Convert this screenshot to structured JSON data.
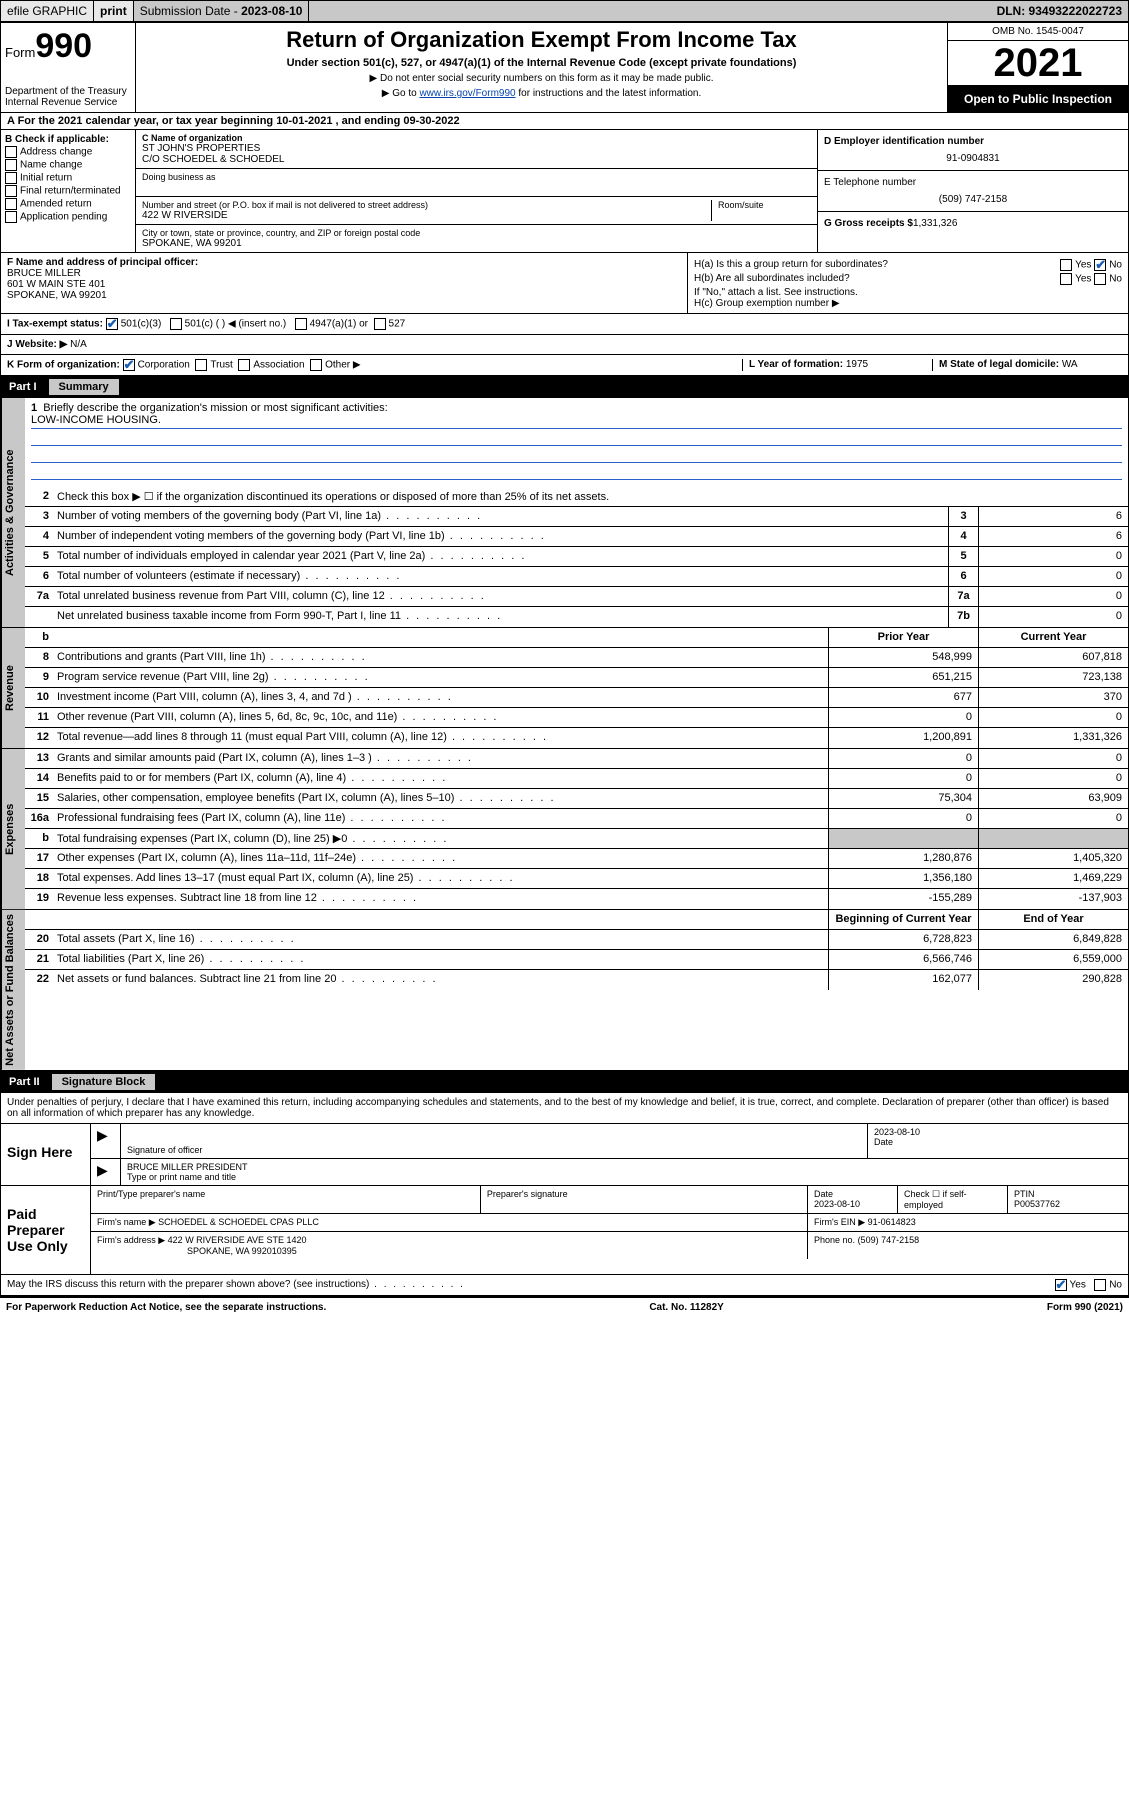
{
  "topbar": {
    "efile": "efile GRAPHIC",
    "print": "print",
    "sub_label": "Submission Date - ",
    "sub_date": "2023-08-10",
    "dln": "DLN: 93493222022723"
  },
  "header": {
    "form_prefix": "Form",
    "form_num": "990",
    "dept": "Department of the Treasury Internal Revenue Service",
    "title": "Return of Organization Exempt From Income Tax",
    "sub": "Under section 501(c), 527, or 4947(a)(1) of the Internal Revenue Code (except private foundations)",
    "note1": "▶ Do not enter social security numbers on this form as it may be made public.",
    "note2_pre": "▶ Go to ",
    "note2_link": "www.irs.gov/Form990",
    "note2_post": " for instructions and the latest information.",
    "omb": "OMB No. 1545-0047",
    "year": "2021",
    "inspect": "Open to Public Inspection"
  },
  "rowA": "A For the 2021 calendar year, or tax year beginning 10-01-2021  , and ending 09-30-2022",
  "colB": {
    "label": "B Check if applicable:",
    "opts": [
      "Address change",
      "Name change",
      "Initial return",
      "Final return/terminated",
      "Amended return",
      "Application pending"
    ]
  },
  "colC": {
    "name_label": "C Name of organization",
    "name1": "ST JOHN'S PROPERTIES",
    "name2": "C/O SCHOEDEL & SCHOEDEL",
    "dba_label": "Doing business as",
    "addr_label": "Number and street (or P.O. box if mail is not delivered to street address)",
    "room_label": "Room/suite",
    "addr": "422 W RIVERSIDE",
    "city_label": "City or town, state or province, country, and ZIP or foreign postal code",
    "city": "SPOKANE, WA  99201"
  },
  "colD": {
    "ein_label": "D Employer identification number",
    "ein": "91-0904831",
    "tel_label": "E Telephone number",
    "tel": "(509) 747-2158",
    "gross_label": "G Gross receipts $",
    "gross": "1,331,326"
  },
  "colF": {
    "label": "F Name and address of principal officer:",
    "name": "BRUCE MILLER",
    "addr1": "601 W MAIN STE 401",
    "addr2": "SPOKANE, WA  99201"
  },
  "colH": {
    "ha": "H(a)  Is this a group return for subordinates?",
    "hb": "H(b)  Are all subordinates included?",
    "hb_note": "If \"No,\" attach a list. See instructions.",
    "hc": "H(c)  Group exemption number ▶",
    "yes": "Yes",
    "no": "No"
  },
  "rowI": {
    "label": "I   Tax-exempt status:",
    "o1": "501(c)(3)",
    "o2": "501(c) (  ) ◀ (insert no.)",
    "o3": "4947(a)(1) or",
    "o4": "527"
  },
  "rowJ": {
    "label": "J   Website: ▶",
    "val": "N/A"
  },
  "rowK": {
    "label": "K Form of organization:",
    "o1": "Corporation",
    "o2": "Trust",
    "o3": "Association",
    "o4": "Other ▶",
    "l_label": "L Year of formation:",
    "l_val": "1975",
    "m_label": "M State of legal domicile:",
    "m_val": "WA"
  },
  "part1": {
    "num": "Part I",
    "title": "Summary"
  },
  "mission": {
    "num": "1",
    "label": "Briefly describe the organization's mission or most significant activities:",
    "text": "LOW-INCOME HOUSING."
  },
  "gov_lines": [
    {
      "n": "2",
      "d": "Check this box ▶ ☐ if the organization discontinued its operations or disposed of more than 25% of its net assets.",
      "box": "",
      "v": ""
    },
    {
      "n": "3",
      "d": "Number of voting members of the governing body (Part VI, line 1a)",
      "box": "3",
      "v": "6"
    },
    {
      "n": "4",
      "d": "Number of independent voting members of the governing body (Part VI, line 1b)",
      "box": "4",
      "v": "6"
    },
    {
      "n": "5",
      "d": "Total number of individuals employed in calendar year 2021 (Part V, line 2a)",
      "box": "5",
      "v": "0"
    },
    {
      "n": "6",
      "d": "Total number of volunteers (estimate if necessary)",
      "box": "6",
      "v": "0"
    },
    {
      "n": "7a",
      "d": "Total unrelated business revenue from Part VIII, column (C), line 12",
      "box": "7a",
      "v": "0"
    },
    {
      "n": "",
      "d": "Net unrelated business taxable income from Form 990-T, Part I, line 11",
      "box": "7b",
      "v": "0"
    }
  ],
  "rev_hdr": {
    "n": "b",
    "prior": "Prior Year",
    "cur": "Current Year"
  },
  "rev_lines": [
    {
      "n": "8",
      "d": "Contributions and grants (Part VIII, line 1h)",
      "p": "548,999",
      "c": "607,818"
    },
    {
      "n": "9",
      "d": "Program service revenue (Part VIII, line 2g)",
      "p": "651,215",
      "c": "723,138"
    },
    {
      "n": "10",
      "d": "Investment income (Part VIII, column (A), lines 3, 4, and 7d )",
      "p": "677",
      "c": "370"
    },
    {
      "n": "11",
      "d": "Other revenue (Part VIII, column (A), lines 5, 6d, 8c, 9c, 10c, and 11e)",
      "p": "0",
      "c": "0"
    },
    {
      "n": "12",
      "d": "Total revenue—add lines 8 through 11 (must equal Part VIII, column (A), line 12)",
      "p": "1,200,891",
      "c": "1,331,326"
    }
  ],
  "exp_lines": [
    {
      "n": "13",
      "d": "Grants and similar amounts paid (Part IX, column (A), lines 1–3 )",
      "p": "0",
      "c": "0"
    },
    {
      "n": "14",
      "d": "Benefits paid to or for members (Part IX, column (A), line 4)",
      "p": "0",
      "c": "0"
    },
    {
      "n": "15",
      "d": "Salaries, other compensation, employee benefits (Part IX, column (A), lines 5–10)",
      "p": "75,304",
      "c": "63,909"
    },
    {
      "n": "16a",
      "d": "Professional fundraising fees (Part IX, column (A), line 11e)",
      "p": "0",
      "c": "0"
    },
    {
      "n": "b",
      "d": "Total fundraising expenses (Part IX, column (D), line 25) ▶0",
      "p": "",
      "c": "",
      "grey": true
    },
    {
      "n": "17",
      "d": "Other expenses (Part IX, column (A), lines 11a–11d, 11f–24e)",
      "p": "1,280,876",
      "c": "1,405,320"
    },
    {
      "n": "18",
      "d": "Total expenses. Add lines 13–17 (must equal Part IX, column (A), line 25)",
      "p": "1,356,180",
      "c": "1,469,229"
    },
    {
      "n": "19",
      "d": "Revenue less expenses. Subtract line 18 from line 12",
      "p": "-155,289",
      "c": "-137,903"
    }
  ],
  "net_hdr": {
    "p": "Beginning of Current Year",
    "c": "End of Year"
  },
  "net_lines": [
    {
      "n": "20",
      "d": "Total assets (Part X, line 16)",
      "p": "6,728,823",
      "c": "6,849,828"
    },
    {
      "n": "21",
      "d": "Total liabilities (Part X, line 26)",
      "p": "6,566,746",
      "c": "6,559,000"
    },
    {
      "n": "22",
      "d": "Net assets or fund balances. Subtract line 21 from line 20",
      "p": "162,077",
      "c": "290,828"
    }
  ],
  "part2": {
    "num": "Part II",
    "title": "Signature Block"
  },
  "sig_intro": "Under penalties of perjury, I declare that I have examined this return, including accompanying schedules and statements, and to the best of my knowledge and belief, it is true, correct, and complete. Declaration of preparer (other than officer) is based on all information of which preparer has any knowledge.",
  "sign_here": {
    "label": "Sign Here",
    "sig_label": "Signature of officer",
    "date_label": "Date",
    "date": "2023-08-10",
    "name": "BRUCE MILLER  PRESIDENT",
    "name_label": "Type or print name and title"
  },
  "paid": {
    "label": "Paid Preparer Use Only",
    "h1": "Print/Type preparer's name",
    "h2": "Preparer's signature",
    "h3": "Date",
    "h3v": "2023-08-10",
    "h4": "Check ☐ if self-employed",
    "h5": "PTIN",
    "h5v": "P00537762",
    "firm_label": "Firm's name    ▶",
    "firm": "SCHOEDEL & SCHOEDEL CPAS PLLC",
    "ein_label": "Firm's EIN ▶",
    "ein": "91-0614823",
    "addr_label": "Firm's address ▶",
    "addr1": "422 W RIVERSIDE AVE STE 1420",
    "addr2": "SPOKANE, WA  992010395",
    "phone_label": "Phone no.",
    "phone": "(509) 747-2158"
  },
  "discuss": {
    "q": "May the IRS discuss this return with the preparer shown above? (see instructions)",
    "yes": "Yes",
    "no": "No"
  },
  "footer": {
    "left": "For Paperwork Reduction Act Notice, see the separate instructions.",
    "mid": "Cat. No. 11282Y",
    "right": "Form 990 (2021)"
  },
  "vtabs": {
    "gov": "Activities & Governance",
    "rev": "Revenue",
    "exp": "Expenses",
    "net": "Net Assets or Fund Balances"
  },
  "colors": {
    "grey": "#c8c8c8",
    "link": "#0645ad",
    "check": "#1a5fb4",
    "line": "#2b5fca"
  }
}
